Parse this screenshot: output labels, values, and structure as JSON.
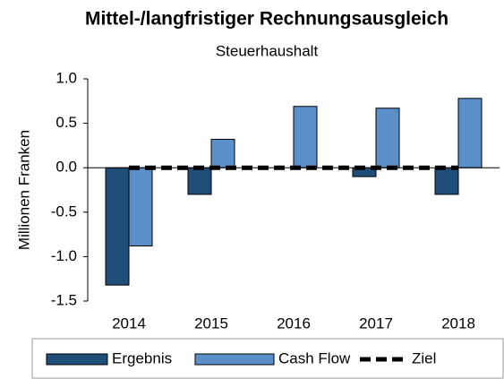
{
  "chart_data": {
    "type": "bar",
    "title": "Mittel-/langfristiger Rechnungsausgleich",
    "subtitle": "Steuerhaushalt",
    "y_label": "Millionen Franken",
    "categories": [
      "2014",
      "2015",
      "2016",
      "2017",
      "2018"
    ],
    "series": [
      {
        "name": "Ergebnis",
        "color": "#1f4e79",
        "values": [
          -1.32,
          -0.3,
          0,
          -0.1,
          -0.3
        ]
      },
      {
        "name": "Cash Flow",
        "color": "#5b8fc9",
        "values": [
          -0.88,
          0.32,
          0.69,
          0.67,
          0.78
        ]
      },
      {
        "name": "Ziel",
        "type": "line",
        "color": "#000000",
        "values": [
          0,
          0,
          0,
          0,
          0
        ]
      }
    ],
    "ylim": [
      -1.5,
      1
    ],
    "yticks": [
      {
        "value": 1,
        "label": "1.0"
      },
      {
        "value": 0.5,
        "label": "0.5"
      },
      {
        "value": 0,
        "label": "0.0"
      },
      {
        "value": -0.5,
        "label": "-0.5"
      },
      {
        "value": -1,
        "label": "-1.0"
      },
      {
        "value": -1.5,
        "label": "-1.5"
      }
    ],
    "grid": false,
    "legend": "bottom"
  }
}
